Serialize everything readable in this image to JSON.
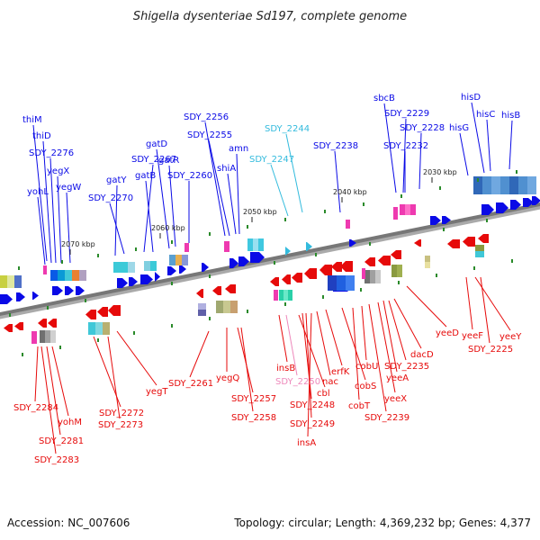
{
  "title": "Shigella dysenteriae Sd197, complete genome",
  "footer": {
    "accession": "Accession: NC_007606",
    "topology": "Topology: circular; Length: 4,369,232 bp; Genes: 4,377"
  },
  "colors": {
    "forward": "#0a0ae6",
    "reverse": "#e60a0a",
    "light": "#33bbdd",
    "pseudo": "#ee88bb",
    "backbone": "#777777",
    "tick_mark": "#2a8a2a"
  },
  "ticks": [
    {
      "label": "2030 kbp"
    },
    {
      "label": "2040 kbp"
    },
    {
      "label": "2050 kbp"
    },
    {
      "label": "2060 kbp"
    },
    {
      "label": "2070 kbp"
    }
  ],
  "top_labels": [
    {
      "text": "thiM",
      "style": "forward"
    },
    {
      "text": "thiD",
      "style": "forward"
    },
    {
      "text": "SDY_2276",
      "style": "forward"
    },
    {
      "text": "yegX",
      "style": "forward"
    },
    {
      "text": "yohL",
      "style": "forward"
    },
    {
      "text": "yegW",
      "style": "forward"
    },
    {
      "text": "gatY",
      "style": "forward"
    },
    {
      "text": "SDY_2270",
      "style": "forward"
    },
    {
      "text": "SDY_2267",
      "style": "forward"
    },
    {
      "text": "gatB",
      "style": "forward"
    },
    {
      "text": "gatD",
      "style": "forward"
    },
    {
      "text": "gatR",
      "style": "forward"
    },
    {
      "text": "SDY_2260",
      "style": "forward"
    },
    {
      "text": "SDY_2256",
      "style": "forward"
    },
    {
      "text": "SDY_2255",
      "style": "forward"
    },
    {
      "text": "amn",
      "style": "forward"
    },
    {
      "text": "shiA",
      "style": "forward"
    },
    {
      "text": "SDY_2244",
      "style": "light"
    },
    {
      "text": "SDY_2247",
      "style": "light"
    },
    {
      "text": "SDY_2238",
      "style": "forward"
    },
    {
      "text": "sbcB",
      "style": "forward"
    },
    {
      "text": "SDY_2229",
      "style": "forward"
    },
    {
      "text": "SDY_2232",
      "style": "forward"
    },
    {
      "text": "SDY_2228",
      "style": "forward"
    },
    {
      "text": "hisD",
      "style": "forward"
    },
    {
      "text": "hisC",
      "style": "forward"
    },
    {
      "text": "hisB",
      "style": "forward"
    },
    {
      "text": "hisG",
      "style": "forward"
    }
  ],
  "bottom_labels": [
    {
      "text": "SDY_2284",
      "style": "reverse"
    },
    {
      "text": "yohM",
      "style": "reverse"
    },
    {
      "text": "SDY_2281",
      "style": "reverse"
    },
    {
      "text": "SDY_2283",
      "style": "reverse"
    },
    {
      "text": "SDY_2272",
      "style": "reverse"
    },
    {
      "text": "SDY_2273",
      "style": "reverse"
    },
    {
      "text": "yegT",
      "style": "reverse"
    },
    {
      "text": "SDY_2261",
      "style": "reverse"
    },
    {
      "text": "yegQ",
      "style": "reverse"
    },
    {
      "text": "SDY_2257",
      "style": "reverse"
    },
    {
      "text": "SDY_2258",
      "style": "reverse"
    },
    {
      "text": "insB",
      "style": "reverse"
    },
    {
      "text": "SDY_2250",
      "style": "pseudo"
    },
    {
      "text": "cbl",
      "style": "reverse"
    },
    {
      "text": "SDY_2248",
      "style": "reverse"
    },
    {
      "text": "SDY_2249",
      "style": "reverse"
    },
    {
      "text": "insA",
      "style": "reverse"
    },
    {
      "text": "nac",
      "style": "reverse"
    },
    {
      "text": "erfK",
      "style": "reverse"
    },
    {
      "text": "cobS",
      "style": "reverse"
    },
    {
      "text": "cobT",
      "style": "reverse"
    },
    {
      "text": "cobU",
      "style": "reverse"
    },
    {
      "text": "SDY_2239",
      "style": "reverse"
    },
    {
      "text": "yeeX",
      "style": "reverse"
    },
    {
      "text": "yeeA",
      "style": "reverse"
    },
    {
      "text": "SDY_2235",
      "style": "reverse"
    },
    {
      "text": "dacD",
      "style": "reverse"
    },
    {
      "text": "yeeD",
      "style": "reverse"
    },
    {
      "text": "yeeF",
      "style": "reverse"
    },
    {
      "text": "yeeY",
      "style": "reverse"
    },
    {
      "text": "SDY_2225",
      "style": "reverse"
    }
  ]
}
